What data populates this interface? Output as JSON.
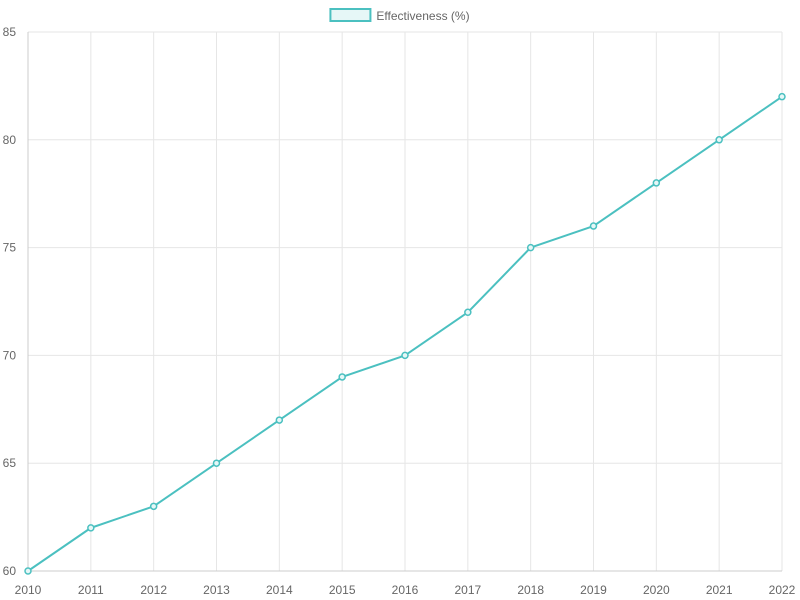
{
  "chart_data": {
    "type": "line",
    "categories": [
      "2010",
      "2011",
      "2012",
      "2013",
      "2014",
      "2015",
      "2016",
      "2017",
      "2018",
      "2019",
      "2020",
      "2021",
      "2022"
    ],
    "series": [
      {
        "name": "Effectiveness (%)",
        "values": [
          60,
          62,
          63,
          65,
          67,
          69,
          70,
          72,
          75,
          76,
          78,
          80,
          82
        ],
        "color": "#4bc0c0",
        "fill_color": "#e6f7f7"
      }
    ],
    "ylim": [
      60,
      85
    ],
    "yticks": [
      60,
      65,
      70,
      75,
      80,
      85
    ],
    "grid": true,
    "legend_position": "top-center",
    "title": "",
    "xlabel": "",
    "ylabel": ""
  }
}
